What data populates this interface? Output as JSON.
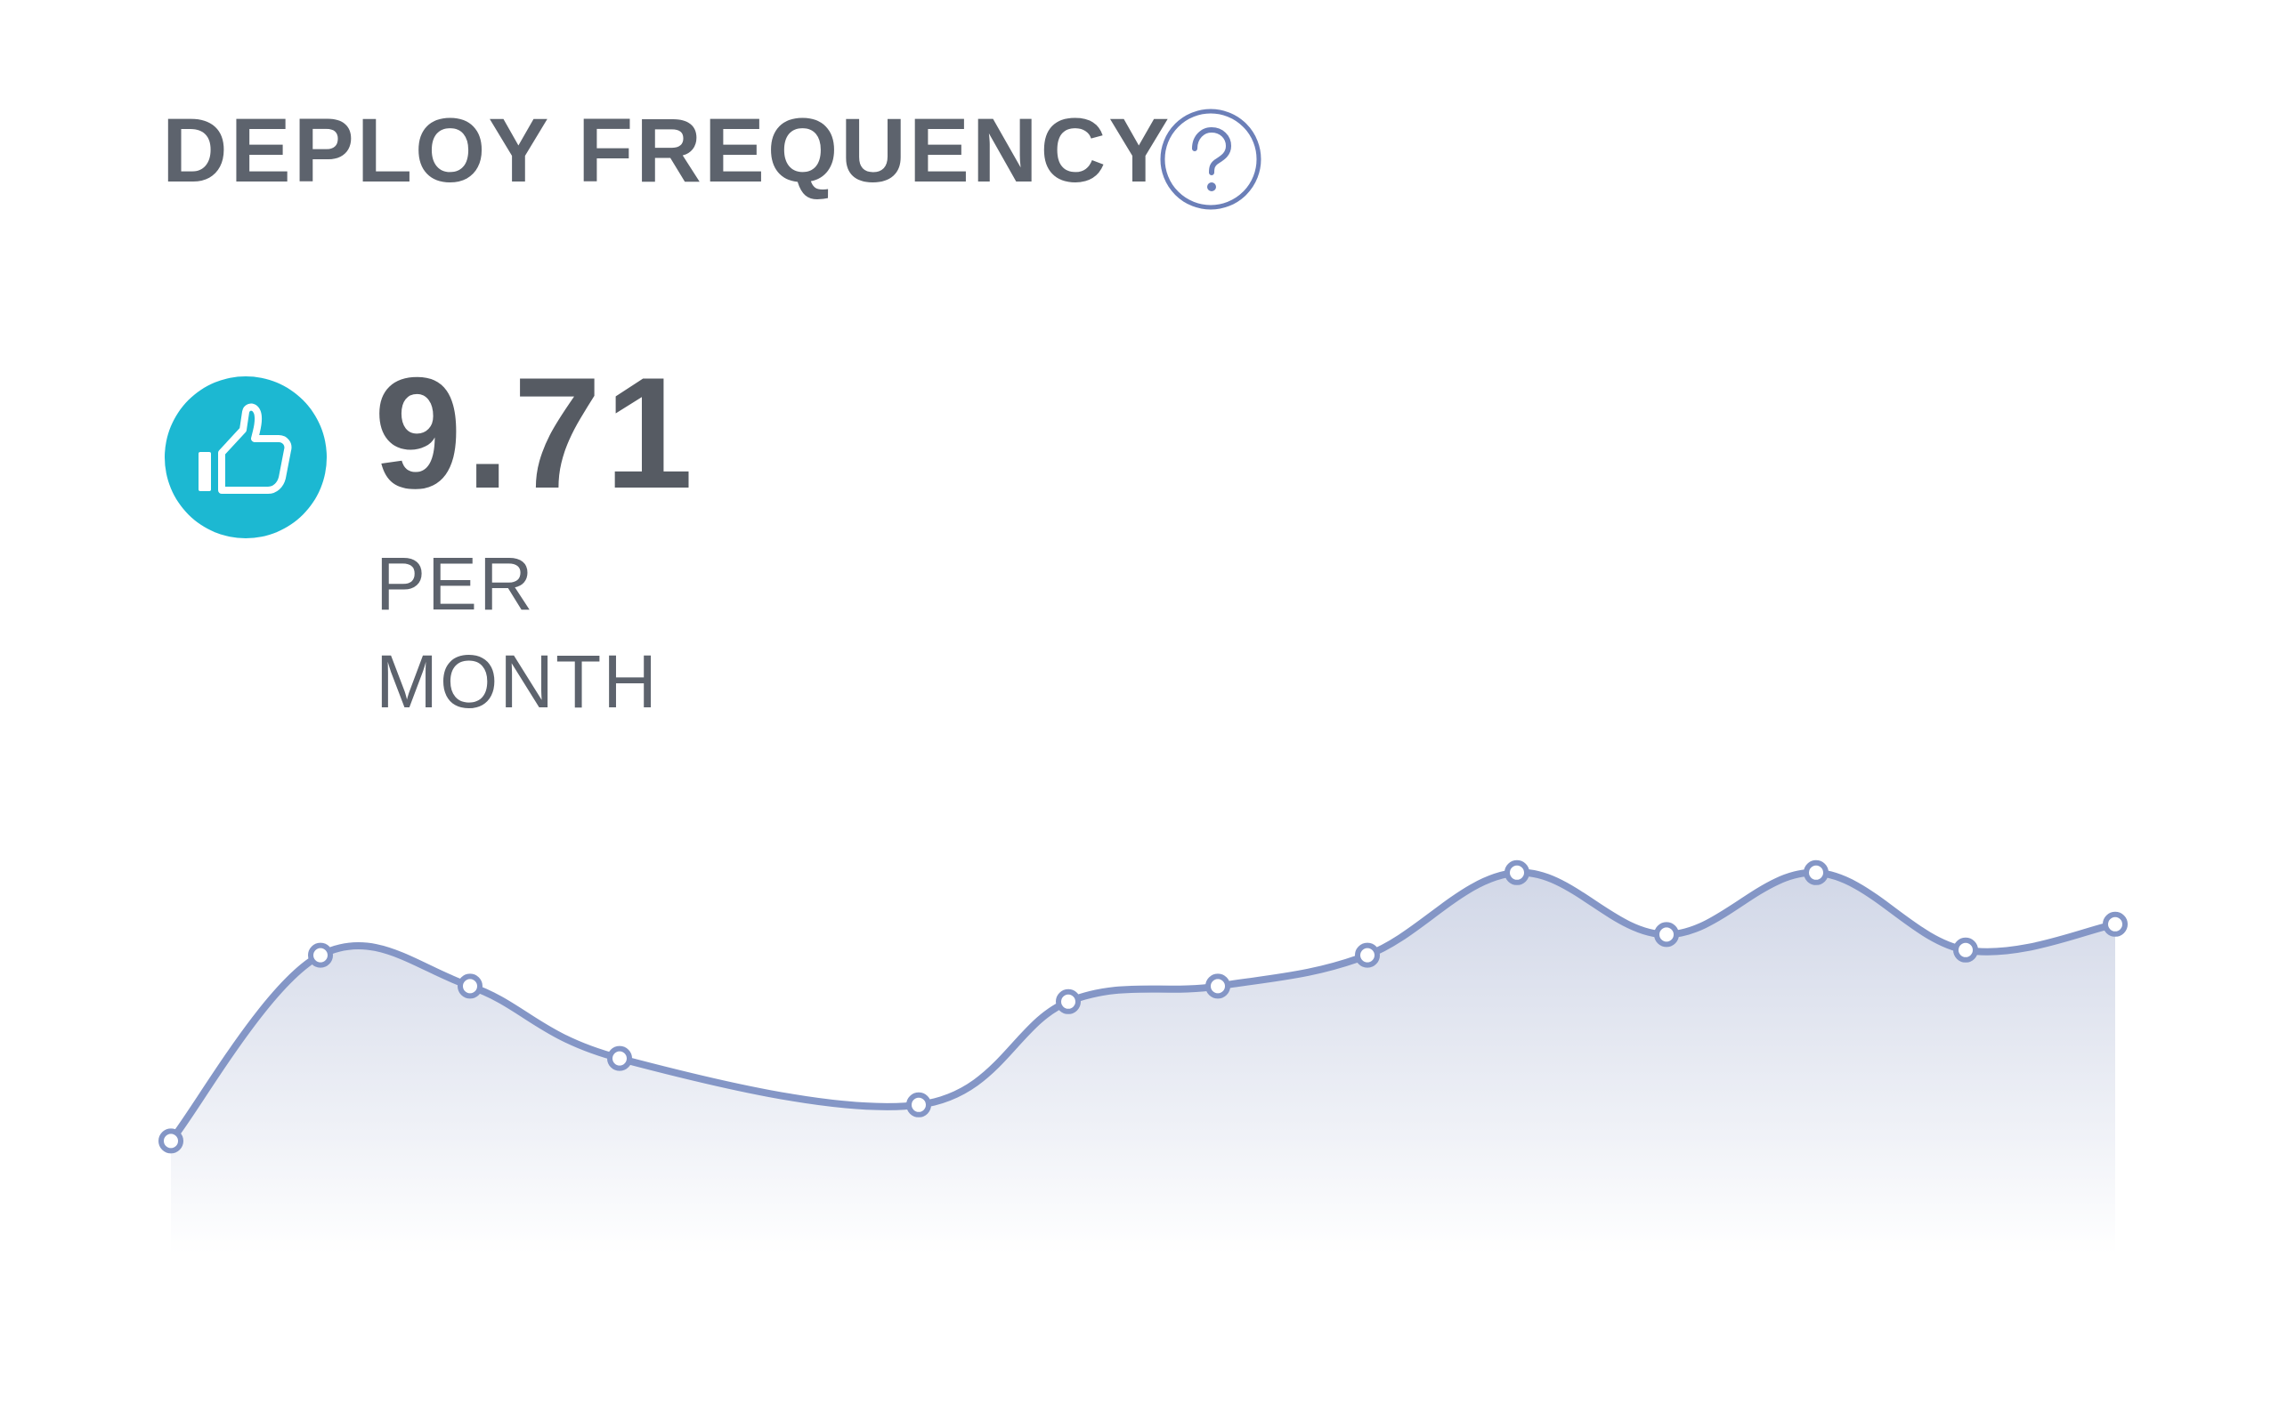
{
  "widget": {
    "title": "DEPLOY FREQUENCY",
    "help_icon": "question-circle-icon",
    "status_icon": "thumbs-up-icon",
    "status_color": "#1cb8d2",
    "value": "9.71",
    "unit_line1": "PER",
    "unit_line2": "MONTH"
  },
  "colors": {
    "line": "#8496c6",
    "help": "#6b7fb8",
    "text": "#5d636d"
  },
  "chart_data": {
    "type": "area",
    "title": "",
    "xlabel": "",
    "ylabel": "",
    "grid": false,
    "legend": "none",
    "ylim": [
      0,
      10
    ],
    "series": [
      {
        "x": [
          0,
          1,
          2,
          3,
          5,
          6,
          7,
          8,
          9,
          10,
          11,
          12,
          13
        ],
        "values": [
          2.2,
          5.8,
          5.2,
          3.8,
          2.9,
          4.9,
          5.2,
          5.8,
          7.4,
          6.2,
          7.4,
          5.9,
          6.4
        ]
      }
    ]
  }
}
